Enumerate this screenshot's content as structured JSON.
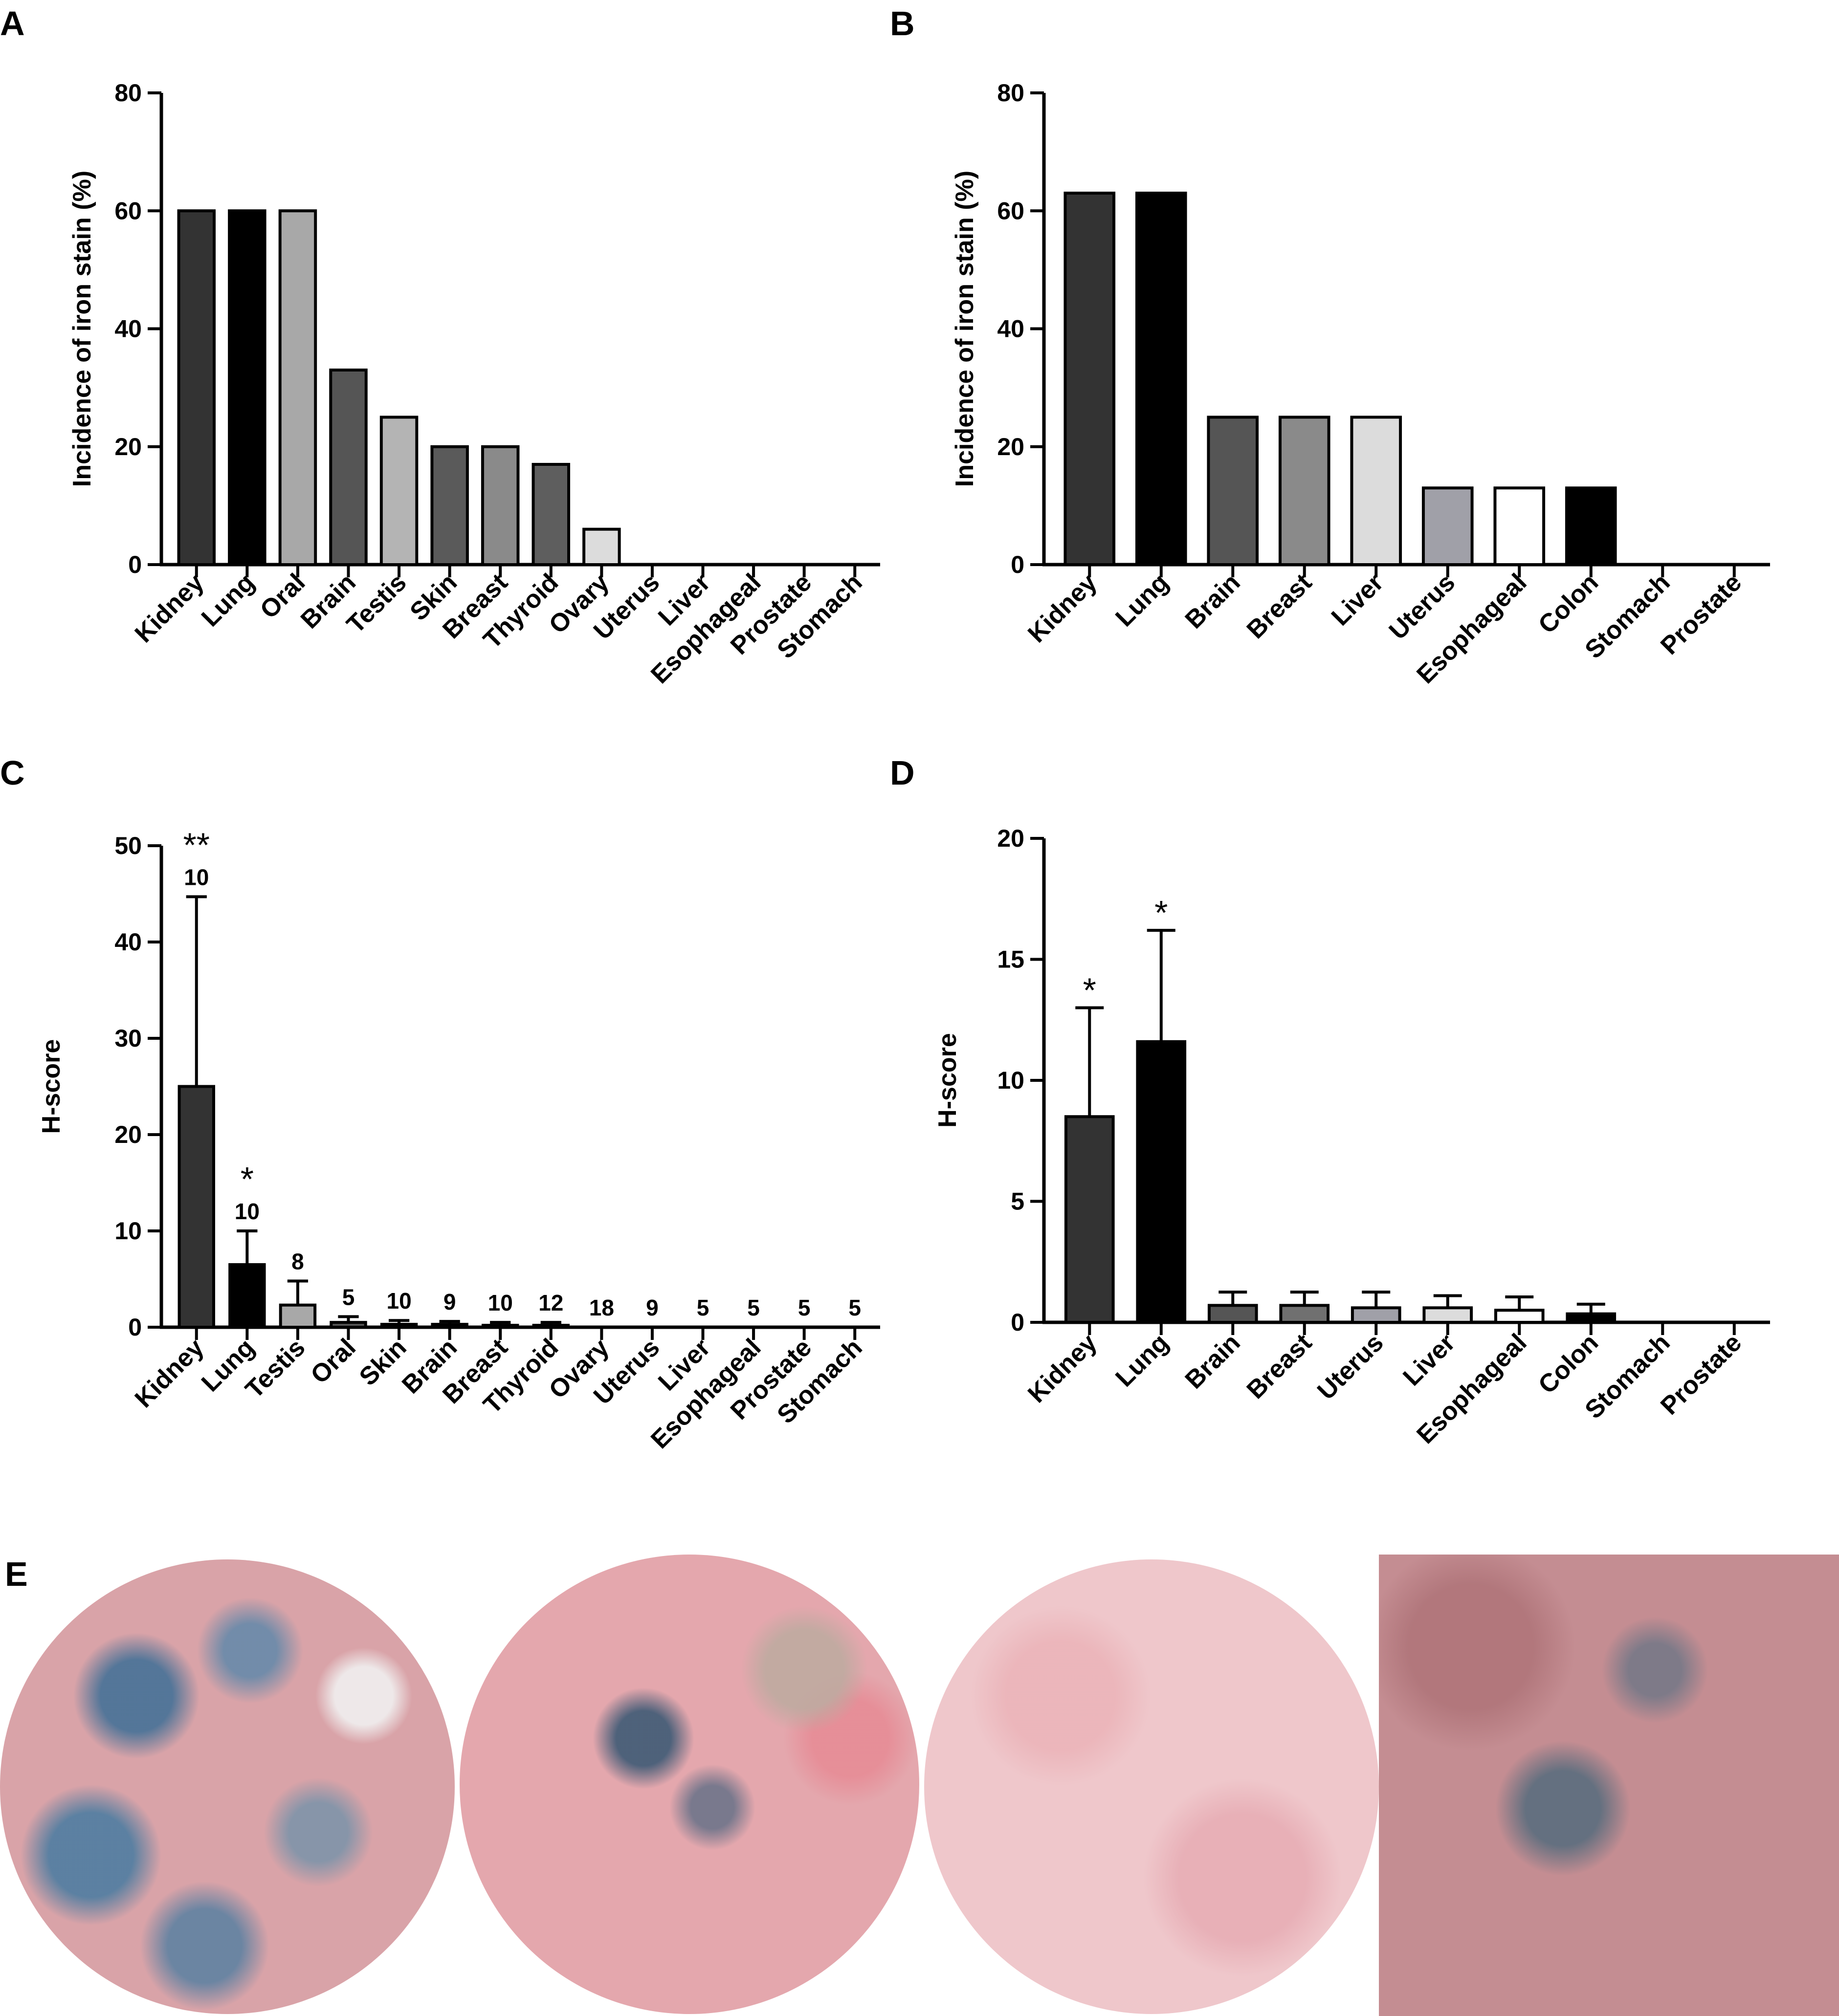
{
  "panel_letters": {
    "a": "A",
    "b": "B",
    "c": "C",
    "d": "D",
    "e": "E"
  },
  "chart_data": [
    {
      "panel": "A",
      "type": "bar",
      "ylabel": "Incidence of iron stain (%)",
      "ylim": [
        0,
        80
      ],
      "yticks": [
        "0",
        "20",
        "40",
        "60",
        "80"
      ],
      "categories": [
        "Kidney",
        "Lung",
        "Oral",
        "Brain",
        "Testis",
        "Skin",
        "Breast",
        "Thyroid",
        "Ovary",
        "Uterus",
        "Liver",
        "Esophageal",
        "Prostate",
        "Stomach"
      ],
      "values": [
        60,
        60,
        60,
        33,
        25,
        20,
        20,
        17,
        6,
        0,
        0,
        0,
        0,
        0
      ],
      "colors": [
        "#333333",
        "#000000",
        "#a8a8a8",
        "#555555",
        "#b4b4b4",
        "#5a5a5a",
        "#8a8a8a",
        "#5e5e5e",
        "#dcdcdc",
        "#ffffff",
        "#ffffff",
        "#ffffff",
        "#ffffff",
        "#ffffff"
      ]
    },
    {
      "panel": "B",
      "type": "bar",
      "ylabel": "Incidence of iron stain (%)",
      "ylim": [
        0,
        80
      ],
      "yticks": [
        "0",
        "20",
        "40",
        "60",
        "80"
      ],
      "categories": [
        "Kidney",
        "Lung",
        "Brain",
        "Breast",
        "Liver",
        "Uterus",
        "Esophageal",
        "Colon",
        "Stomach",
        "Prostate"
      ],
      "values": [
        63,
        63,
        25,
        25,
        25,
        13,
        13,
        13,
        0,
        0
      ],
      "colors": [
        "#333333",
        "#000000",
        "#555555",
        "#8a8a8a",
        "#dcdcdc",
        "#a0a0a8",
        "#ffffff",
        "#000000",
        "#ffffff",
        "#ffffff"
      ]
    },
    {
      "panel": "C",
      "type": "bar",
      "ylabel": "H-score",
      "ylim": [
        0,
        50
      ],
      "yticks": [
        "0",
        "10",
        "20",
        "30",
        "40",
        "50"
      ],
      "categories": [
        "Kidney",
        "Lung",
        "Testis",
        "Oral",
        "Skin",
        "Brain",
        "Breast",
        "Thyroid",
        "Ovary",
        "Uterus",
        "Liver",
        "Esophageal",
        "Prostate",
        "Stomach"
      ],
      "values": [
        25,
        6.5,
        2.3,
        0.5,
        0.3,
        0.3,
        0.2,
        0.2,
        0,
        0,
        0,
        0,
        0,
        0
      ],
      "errors": [
        19.7,
        3.5,
        2.5,
        0.6,
        0.4,
        0.3,
        0.3,
        0.3,
        0,
        0,
        0,
        0,
        0,
        0
      ],
      "n": [
        "10",
        "10",
        "8",
        "5",
        "10",
        "9",
        "10",
        "12",
        "18",
        "9",
        "5",
        "5",
        "5",
        "5"
      ],
      "significance": [
        "**",
        "*",
        "",
        "",
        "",
        "",
        "",
        "",
        "",
        "",
        "",
        "",
        "",
        ""
      ],
      "colors": [
        "#333333",
        "#000000",
        "#a8a8a8",
        "#555555",
        "#5a5a5a",
        "#555555",
        "#8a8a8a",
        "#5e5e5e",
        "#dcdcdc",
        "#ffffff",
        "#ffffff",
        "#ffffff",
        "#ffffff",
        "#ffffff"
      ]
    },
    {
      "panel": "D",
      "type": "bar",
      "ylabel": "H-score",
      "ylim": [
        0,
        20
      ],
      "yticks": [
        "0",
        "5",
        "10",
        "15",
        "20"
      ],
      "categories": [
        "Kidney",
        "Lung",
        "Brain",
        "Breast",
        "Uterus",
        "Liver",
        "Esophageal",
        "Colon",
        "Stomach",
        "Prostate"
      ],
      "values": [
        8.5,
        11.6,
        0.7,
        0.7,
        0.6,
        0.6,
        0.5,
        0.35,
        0,
        0
      ],
      "errors": [
        4.5,
        4.6,
        0.55,
        0.55,
        0.65,
        0.5,
        0.55,
        0.4,
        0,
        0
      ],
      "significance": [
        "*",
        "*",
        "",
        "",
        "",
        "",
        "",
        "",
        "",
        ""
      ],
      "colors": [
        "#333333",
        "#000000",
        "#555555",
        "#707070",
        "#a0a0a8",
        "#dcdcdc",
        "#ffffff",
        "#000000",
        "#ffffff",
        "#ffffff"
      ]
    }
  ]
}
